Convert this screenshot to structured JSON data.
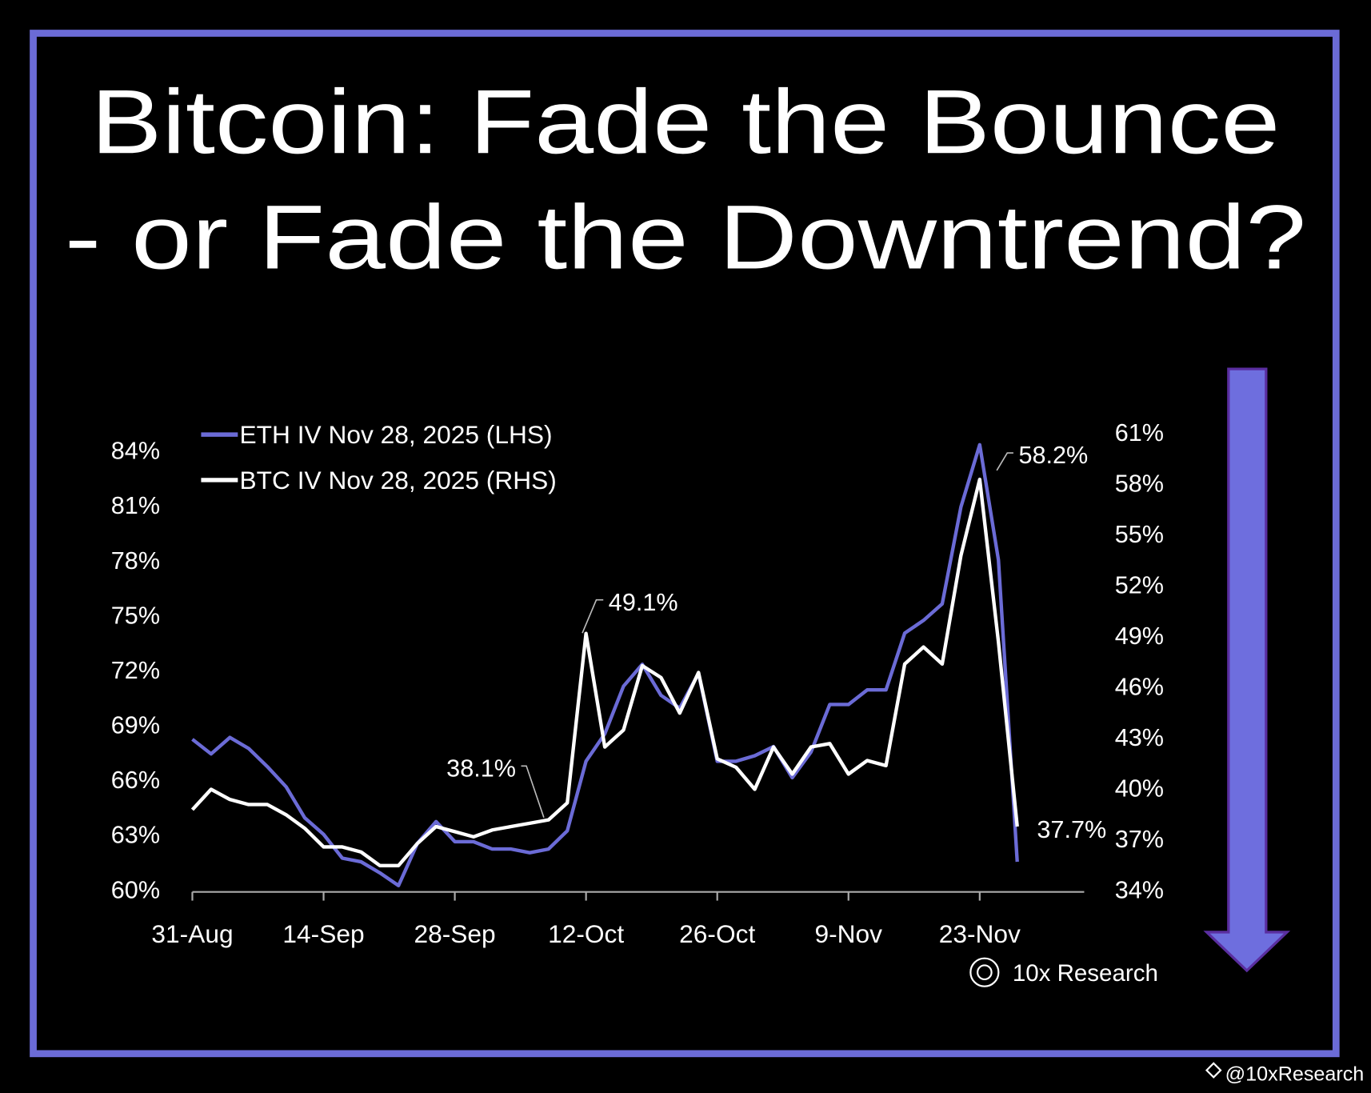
{
  "title_lines": [
    "Bitcoin: Fade the Bounce",
    "- or Fade the Downtrend?"
  ],
  "chart_data": {
    "type": "line",
    "categories": [
      "31-Aug",
      null,
      null,
      null,
      null,
      null,
      null,
      "14-Sep",
      null,
      null,
      null,
      null,
      null,
      null,
      "28-Sep",
      null,
      null,
      null,
      null,
      null,
      null,
      "12-Oct",
      null,
      null,
      null,
      null,
      null,
      null,
      "26-Oct",
      null,
      null,
      null,
      null,
      null,
      null,
      "9-Nov",
      null,
      null,
      null,
      null,
      null,
      null,
      "23-Nov",
      null,
      null
    ],
    "series": [
      {
        "name": "ETH IV Nov 28, 2025 (LHS)",
        "color": "#6b6bd6",
        "axis": "y",
        "values": [
          68.2,
          67.4,
          68.3,
          67.7,
          66.7,
          65.6,
          63.9,
          63.0,
          61.7,
          61.5,
          60.9,
          60.2,
          62.5,
          63.7,
          62.6,
          62.6,
          62.2,
          62.2,
          62.0,
          62.2,
          63.2,
          67.0,
          68.5,
          71.1,
          72.3,
          70.6,
          69.9,
          71.8,
          67.0,
          67.0,
          67.3,
          67.8,
          66.1,
          67.5,
          70.1,
          70.1,
          70.9,
          70.9,
          74.0,
          74.7,
          75.6,
          80.9,
          84.3,
          78.0,
          61.5
        ]
      },
      {
        "name": "BTC IV Nov 28, 2025 (RHS)",
        "color": "#ffffff",
        "axis": "y2",
        "values": [
          38.7,
          39.9,
          39.3,
          39.0,
          39.0,
          38.4,
          37.6,
          36.5,
          36.5,
          36.2,
          35.4,
          35.4,
          36.7,
          37.7,
          37.4,
          37.1,
          37.5,
          37.7,
          37.9,
          38.1,
          39.1,
          49.1,
          42.4,
          43.4,
          47.2,
          46.5,
          44.4,
          46.8,
          41.7,
          41.2,
          39.9,
          42.4,
          40.8,
          42.4,
          42.6,
          40.8,
          41.6,
          41.3,
          47.3,
          48.3,
          47.3,
          53.7,
          58.2,
          48.6,
          37.7
        ]
      }
    ],
    "ylim": [
      60,
      85
    ],
    "yticks": [
      {
        "value": 60,
        "label": "60%"
      },
      {
        "value": 63,
        "label": "63%"
      },
      {
        "value": 66,
        "label": "66%"
      },
      {
        "value": 69,
        "label": "69%"
      },
      {
        "value": 72,
        "label": "72%"
      },
      {
        "value": 75,
        "label": "75%"
      },
      {
        "value": 78,
        "label": "78%"
      },
      {
        "value": 81,
        "label": "81%"
      },
      {
        "value": 84,
        "label": "84%"
      }
    ],
    "y2lim": [
      34,
      61
    ],
    "y2ticks": [
      {
        "value": 34,
        "label": "34%"
      },
      {
        "value": 37,
        "label": "37%"
      },
      {
        "value": 40,
        "label": "40%"
      },
      {
        "value": 43,
        "label": "43%"
      },
      {
        "value": 46,
        "label": "46%"
      },
      {
        "value": 49,
        "label": "49%"
      },
      {
        "value": 52,
        "label": "52%"
      },
      {
        "value": 55,
        "label": "55%"
      },
      {
        "value": 58,
        "label": "58%"
      },
      {
        "value": 61,
        "label": "61%"
      }
    ],
    "annotations": [
      "49.1%",
      "38.1%",
      "58.2%",
      "37.7%"
    ],
    "legend": "upper left",
    "grid": false
  },
  "source": "10x Research",
  "handle": "@10xResearch"
}
